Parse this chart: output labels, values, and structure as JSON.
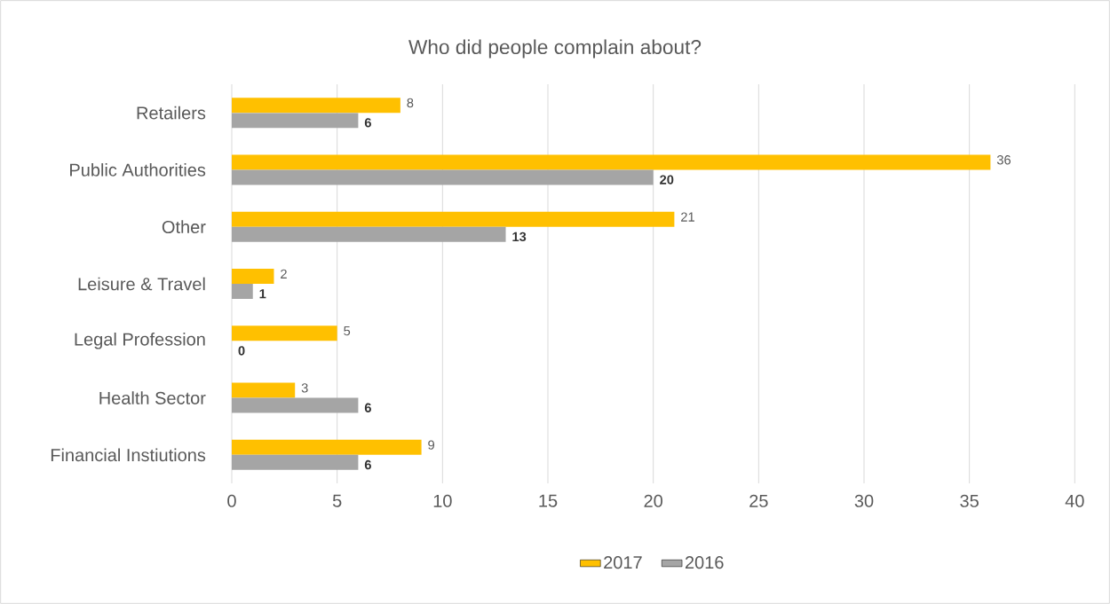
{
  "chart_data": {
    "type": "bar",
    "orientation": "horizontal",
    "title": "Who did people complain about?",
    "categories": [
      "Retailers",
      "Public Authorities",
      "Other",
      "Leisure & Travel",
      "Legal Profession",
      "Health Sector",
      "Financial Instiutions"
    ],
    "series": [
      {
        "name": "2017",
        "color": "#ffc000",
        "values": [
          8,
          36,
          21,
          2,
          5,
          3,
          9
        ]
      },
      {
        "name": "2016",
        "color": "#a5a5a5",
        "values": [
          6,
          20,
          13,
          1,
          0,
          6,
          6
        ]
      }
    ],
    "xlim": [
      0,
      40
    ],
    "xticks": [
      0,
      5,
      10,
      15,
      20,
      25,
      30,
      35,
      40
    ],
    "grid": "x",
    "legend": "bottom",
    "data_labels": true
  }
}
